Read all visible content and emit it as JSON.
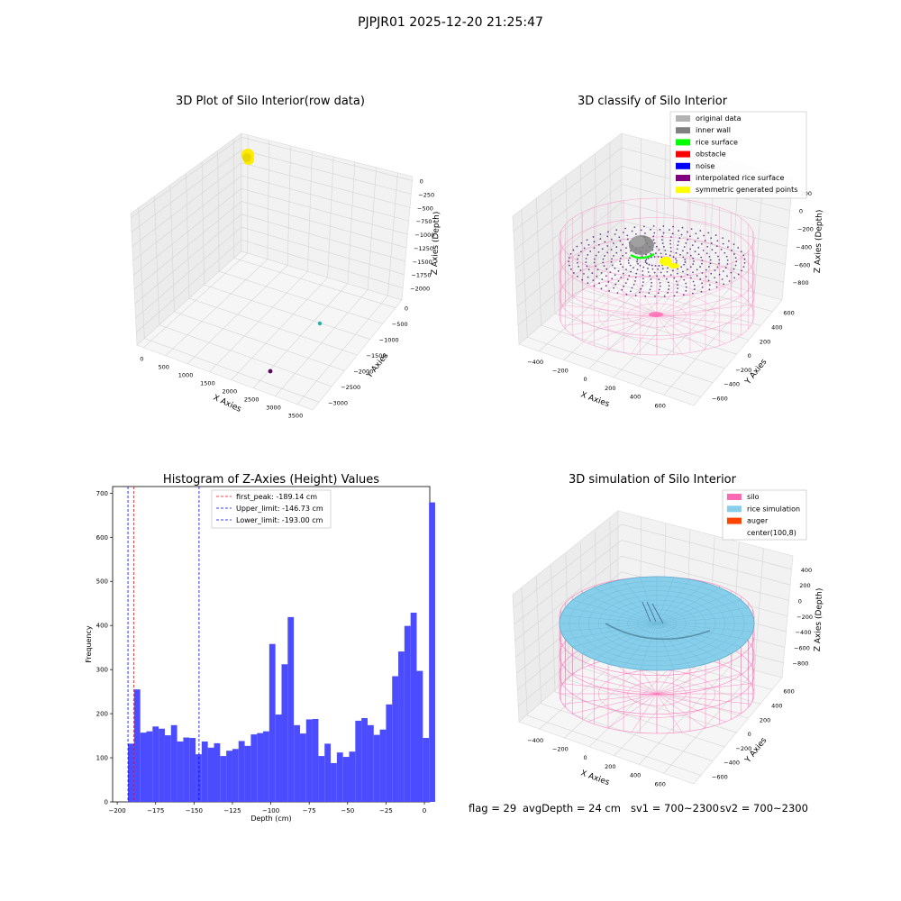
{
  "figure": {
    "suptitle": "PJPJR01 2025-12-20 21:25:47"
  },
  "status_line": {
    "flag": "flag = 29",
    "avg_depth": "avgDepth = 24 cm",
    "sv1": "sv1 = 700~2300",
    "sv2": "sv2 = 700~2300"
  },
  "colors": {
    "original_data": "#b3b3b3",
    "inner_wall": "#808080",
    "rice_surface": "#00ff00",
    "obstacle": "#ff0000",
    "noise": "#0000ff",
    "interpolated_rice_surface": "#800080",
    "symmetric_generated_points": "#ffff00",
    "silo": "#ff69b4",
    "rice_simulation": "#87ceeb",
    "auger": "#ff4500",
    "hist_bar": "#4b4bff",
    "first_peak_line": "#ff0000",
    "limit_line": "#0000ff"
  },
  "chart_data": [
    {
      "type": "scatter",
      "subtype": "3d",
      "title": "3D Plot of Silo Interior(row data)",
      "xlabel": "X Axies",
      "ylabel": "Y Axies",
      "zlabel": "Z Axies (Depth)",
      "x_ticks": [
        "0",
        "500",
        "1000",
        "1500",
        "2000",
        "2500",
        "3000",
        "3500"
      ],
      "y_ticks": [
        "0",
        "−500",
        "−1000",
        "−1500",
        "−2000",
        "−2500",
        "−3000"
      ],
      "z_ticks": [
        "0",
        "−250",
        "−500",
        "−750",
        "−1000",
        "−1250",
        "−1500",
        "−1750",
        "−2000"
      ],
      "xlim": [
        -200,
        3600
      ],
      "ylim": [
        -3100,
        200
      ],
      "zlim": [
        -2100,
        100
      ],
      "series": [
        {
          "color": "#ffeb00",
          "points": [
            [
              -150,
              150,
              0
            ],
            [
              -100,
              100,
              -30
            ]
          ]
        },
        {
          "color": "#20b2aa",
          "points": [
            [
              2900,
              -250,
              -2000
            ]
          ]
        },
        {
          "color": "#5a0a5a",
          "points": [
            [
              2400,
              -1600,
              -2000
            ]
          ]
        }
      ]
    },
    {
      "type": "scatter",
      "subtype": "3d",
      "title": "3D classify of Silo Interior",
      "xlabel": "X Axies",
      "ylabel": "Y Axies",
      "zlabel": "Z Axies (Depth)",
      "x_ticks": [
        "−400",
        "−200",
        "0",
        "200",
        "400",
        "600"
      ],
      "y_ticks": [
        "−600",
        "−400",
        "−200",
        "0",
        "200",
        "400",
        "600"
      ],
      "z_ticks": [
        "200",
        "0",
        "−200",
        "−400",
        "−600",
        "−800"
      ],
      "legend": [
        "original data",
        "inner wall",
        "rice surface",
        "obstacle",
        "noise",
        "interpolated rice surface",
        "symmetric generated points"
      ],
      "legend_loc": "top-right"
    },
    {
      "type": "bar",
      "subtype": "histogram",
      "title": "Histogram of Z-Axies (Height) Values",
      "xlabel": "Depth (cm)",
      "ylabel": "Frequency",
      "xlim": [
        -203,
        3.5
      ],
      "ylim": [
        0,
        715
      ],
      "x_ticks": [
        -200,
        -175,
        -150,
        -125,
        -100,
        -75,
        -50,
        -25,
        0
      ],
      "y_ticks": [
        0,
        100,
        200,
        300,
        400,
        500,
        600,
        700
      ],
      "bin_start": -193,
      "bin_width": 4,
      "values": [
        132,
        255,
        157,
        160,
        171,
        166,
        151,
        174,
        137,
        146,
        145,
        108,
        137,
        123,
        133,
        104,
        116,
        120,
        138,
        127,
        153,
        156,
        160,
        358,
        198,
        312,
        419,
        174,
        155,
        187,
        188,
        104,
        132,
        88,
        112,
        102,
        114,
        184,
        190,
        174,
        152,
        164,
        221,
        285,
        341,
        399,
        429,
        297,
        145,
        679
      ],
      "vlines": [
        {
          "label": "first_peak: -189.14 cm",
          "x": -189.14,
          "style": "red-dashed"
        },
        {
          "label": "Upper_limit: -146.73 cm",
          "x": -146.73,
          "style": "blue-dashed"
        },
        {
          "label": "Lower_limit: -193.00 cm",
          "x": -193.0,
          "style": "blue-dashed"
        }
      ],
      "legend_loc": "top-center"
    },
    {
      "type": "scatter",
      "subtype": "3d-surface",
      "title": "3D simulation of Silo Interior",
      "xlabel": "X Axies",
      "ylabel": "Y Axies",
      "zlabel": "Z Axies (Depth)",
      "x_ticks": [
        "−400",
        "−200",
        "0",
        "200",
        "400",
        "600"
      ],
      "y_ticks": [
        "−600",
        "−400",
        "−200",
        "0",
        "200",
        "400",
        "600"
      ],
      "z_ticks": [
        "400",
        "200",
        "0",
        "−200",
        "−400",
        "−600",
        "−800"
      ],
      "legend": [
        "silo",
        "rice simulation",
        "auger",
        "center(100,8)"
      ],
      "legend_loc": "top-right"
    }
  ]
}
